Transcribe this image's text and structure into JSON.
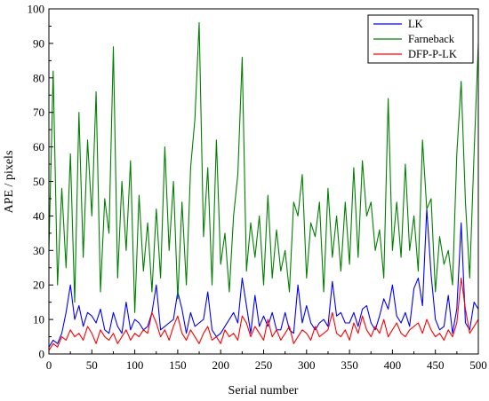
{
  "chart_data": {
    "type": "line",
    "title": "",
    "xlabel": "Serial number",
    "ylabel": "APE / pixels",
    "xlim": [
      0,
      500
    ],
    "ylim": [
      0,
      100
    ],
    "x_ticks": [
      0,
      50,
      100,
      150,
      200,
      250,
      300,
      350,
      400,
      450,
      500
    ],
    "y_ticks": [
      0,
      10,
      20,
      30,
      40,
      50,
      60,
      70,
      80,
      90,
      100
    ],
    "legend_position": "top-right",
    "grid": false,
    "series": [
      {
        "name": "LK",
        "color": "#0000ff",
        "x": [
          0,
          5,
          10,
          15,
          20,
          25,
          30,
          35,
          40,
          45,
          50,
          55,
          60,
          65,
          70,
          75,
          80,
          85,
          90,
          95,
          100,
          105,
          110,
          115,
          120,
          125,
          130,
          135,
          140,
          145,
          150,
          155,
          160,
          165,
          170,
          175,
          180,
          185,
          190,
          195,
          200,
          205,
          210,
          215,
          220,
          225,
          230,
          235,
          240,
          245,
          250,
          255,
          260,
          265,
          270,
          275,
          280,
          285,
          290,
          295,
          300,
          305,
          310,
          315,
          320,
          325,
          330,
          335,
          340,
          345,
          350,
          355,
          360,
          365,
          370,
          375,
          380,
          385,
          390,
          395,
          400,
          405,
          410,
          415,
          420,
          425,
          430,
          435,
          440,
          445,
          450,
          455,
          460,
          465,
          470,
          475,
          480,
          485,
          490,
          495,
          500
        ],
        "values": [
          2,
          4,
          3,
          6,
          12,
          20,
          10,
          14,
          8,
          12,
          11,
          9,
          13,
          7,
          6,
          12,
          8,
          6,
          15,
          7,
          10,
          9,
          7,
          8,
          12,
          20,
          7,
          8,
          9,
          10,
          18,
          13,
          6,
          12,
          8,
          9,
          10,
          18,
          7,
          5,
          6,
          8,
          10,
          12,
          9,
          22,
          14,
          6,
          17,
          8,
          11,
          8,
          12,
          7,
          7,
          12,
          7,
          6,
          20,
          9,
          14,
          9,
          7,
          9,
          10,
          8,
          21,
          11,
          12,
          9,
          9,
          12,
          8,
          13,
          14,
          9,
          7,
          11,
          16,
          13,
          20,
          11,
          9,
          12,
          8,
          19,
          22,
          14,
          42,
          23,
          10,
          7,
          8,
          17,
          6,
          13,
          38,
          9,
          7,
          15,
          13
        ]
      },
      {
        "name": "Farneback",
        "color": "#008000",
        "x": [
          0,
          5,
          10,
          15,
          20,
          25,
          30,
          35,
          40,
          45,
          50,
          55,
          60,
          65,
          70,
          75,
          80,
          85,
          90,
          95,
          100,
          105,
          110,
          115,
          120,
          125,
          130,
          135,
          140,
          145,
          150,
          155,
          160,
          165,
          170,
          175,
          180,
          185,
          190,
          195,
          200,
          205,
          210,
          215,
          220,
          225,
          230,
          235,
          240,
          245,
          250,
          255,
          260,
          265,
          270,
          275,
          280,
          285,
          290,
          295,
          300,
          305,
          310,
          315,
          320,
          325,
          330,
          335,
          340,
          345,
          350,
          355,
          360,
          365,
          370,
          375,
          380,
          385,
          390,
          395,
          400,
          405,
          410,
          415,
          420,
          425,
          430,
          435,
          440,
          445,
          450,
          455,
          460,
          465,
          470,
          475,
          480,
          485,
          490,
          495,
          500
        ],
        "values": [
          30,
          82,
          20,
          48,
          25,
          58,
          15,
          70,
          28,
          62,
          40,
          76,
          18,
          45,
          35,
          89,
          22,
          50,
          30,
          56,
          12,
          46,
          24,
          38,
          18,
          42,
          22,
          60,
          30,
          50,
          16,
          44,
          20,
          54,
          68,
          96,
          34,
          54,
          20,
          62,
          26,
          35,
          18,
          40,
          52,
          86,
          24,
          38,
          28,
          40,
          20,
          46,
          22,
          36,
          24,
          30,
          18,
          44,
          40,
          52,
          22,
          38,
          34,
          44,
          18,
          48,
          28,
          40,
          24,
          44,
          26,
          54,
          28,
          56,
          40,
          44,
          30,
          36,
          22,
          74,
          30,
          44,
          28,
          55,
          30,
          40,
          24,
          62,
          42,
          45,
          18,
          34,
          26,
          30,
          20,
          58,
          79,
          44,
          22,
          58,
          90
        ]
      },
      {
        "name": "DFP-P-LK",
        "color": "#ff0000",
        "x": [
          0,
          5,
          10,
          15,
          20,
          25,
          30,
          35,
          40,
          45,
          50,
          55,
          60,
          65,
          70,
          75,
          80,
          85,
          90,
          95,
          100,
          105,
          110,
          115,
          120,
          125,
          130,
          135,
          140,
          145,
          150,
          155,
          160,
          165,
          170,
          175,
          180,
          185,
          190,
          195,
          200,
          205,
          210,
          215,
          220,
          225,
          230,
          235,
          240,
          245,
          250,
          255,
          260,
          265,
          270,
          275,
          280,
          285,
          290,
          295,
          300,
          305,
          310,
          315,
          320,
          325,
          330,
          335,
          340,
          345,
          350,
          355,
          360,
          365,
          370,
          375,
          380,
          385,
          390,
          395,
          400,
          405,
          410,
          415,
          420,
          425,
          430,
          435,
          440,
          445,
          450,
          455,
          460,
          465,
          470,
          475,
          480,
          485,
          490,
          495,
          500
        ],
        "values": [
          1,
          3,
          2,
          5,
          4,
          7,
          5,
          6,
          4,
          8,
          6,
          3,
          7,
          5,
          4,
          6,
          3,
          5,
          7,
          4,
          6,
          5,
          7,
          6,
          12,
          9,
          5,
          7,
          4,
          8,
          11,
          6,
          4,
          7,
          5,
          3,
          6,
          8,
          4,
          5,
          3,
          7,
          5,
          6,
          4,
          11,
          9,
          5,
          8,
          6,
          4,
          10,
          5,
          7,
          4,
          6,
          8,
          3,
          5,
          7,
          6,
          4,
          8,
          5,
          6,
          7,
          12,
          6,
          5,
          7,
          4,
          9,
          6,
          11,
          7,
          5,
          8,
          6,
          10,
          5,
          7,
          9,
          6,
          5,
          7,
          8,
          9,
          6,
          10,
          7,
          5,
          6,
          4,
          7,
          5,
          9,
          22,
          13,
          6,
          8,
          10
        ]
      }
    ]
  }
}
